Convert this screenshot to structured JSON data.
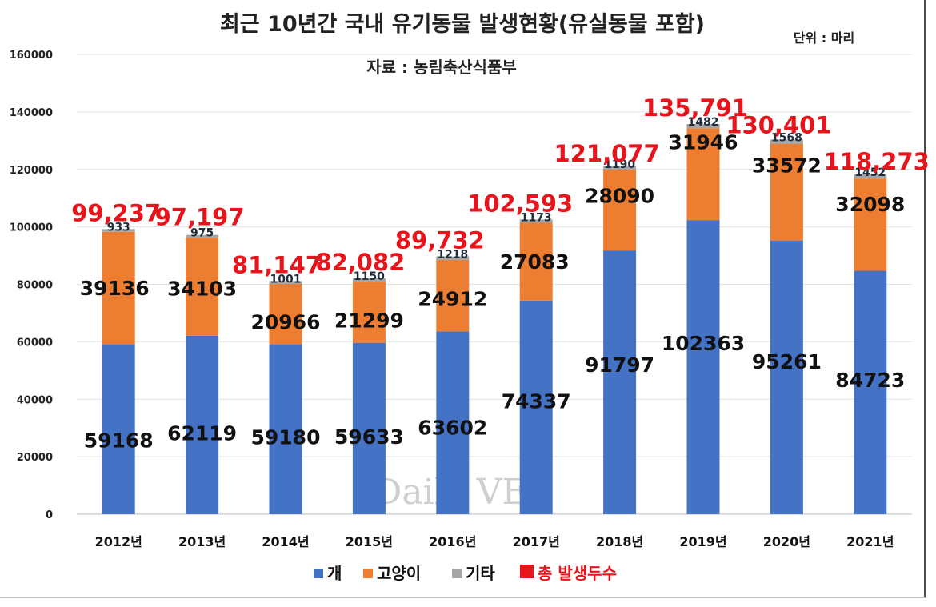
{
  "chart_data": {
    "type": "bar",
    "stacked": true,
    "title": "최근 10년간 국내 유기동물 발생현황(유실동물 포함)",
    "subtitle": "자료 : 농림축산식품부",
    "unit": "단위 : 마리",
    "categories": [
      "2012년",
      "2013년",
      "2014년",
      "2015년",
      "2016년",
      "2017년",
      "2018년",
      "2019년",
      "2020년",
      "2021년"
    ],
    "series": [
      {
        "name": "개",
        "color": "#4472c4",
        "values": [
          59168,
          62119,
          59180,
          59633,
          63602,
          74337,
          91797,
          102363,
          95261,
          84723
        ]
      },
      {
        "name": "고양이",
        "color": "#ed7d31",
        "values": [
          39136,
          34103,
          20966,
          21299,
          24912,
          27083,
          28090,
          31946,
          33572,
          32098
        ]
      },
      {
        "name": "기타",
        "color": "#a5a5a5",
        "values": [
          933,
          975,
          1001,
          1150,
          1218,
          1173,
          1190,
          1482,
          1568,
          1452
        ]
      }
    ],
    "totals": {
      "name": "총 발생두수",
      "color": "#e8141b",
      "values": [
        99237,
        97197,
        81147,
        82082,
        89732,
        102593,
        121077,
        135791,
        130401,
        118273
      ],
      "labels": [
        "99,237",
        "97,197",
        "81,147",
        "82,082",
        "89,732",
        "102,593",
        "121,077",
        "135,791",
        "130,401",
        "118,273"
      ]
    },
    "ylim": [
      0,
      160000
    ],
    "yticks": [
      0,
      20000,
      40000,
      60000,
      80000,
      100000,
      120000,
      140000,
      160000
    ],
    "grid": true,
    "legend": "bottom",
    "watermark": "Daily VET"
  }
}
